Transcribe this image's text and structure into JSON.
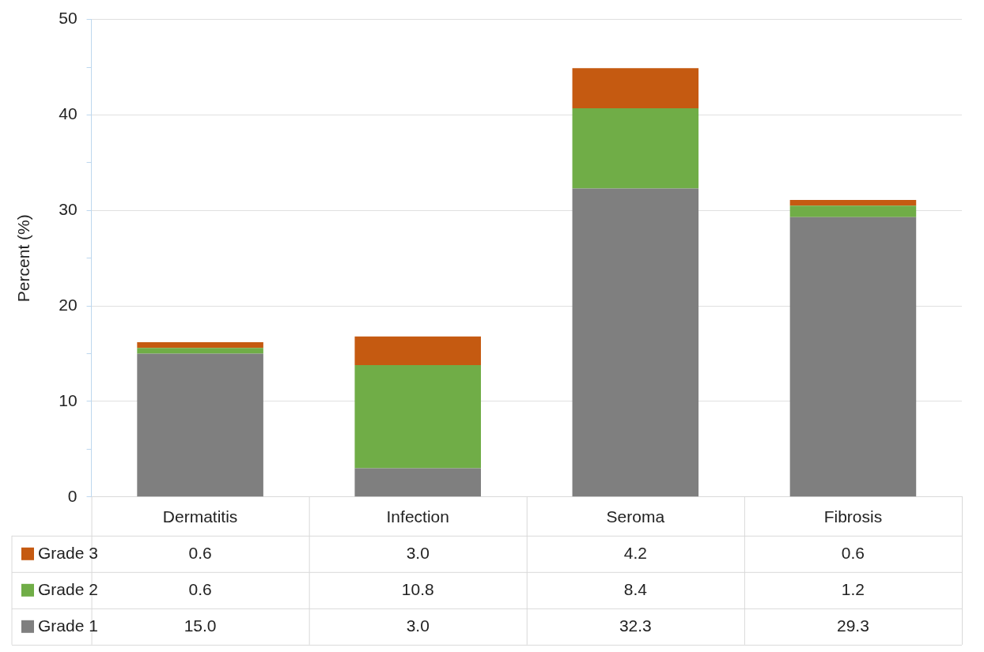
{
  "chart_data": {
    "type": "bar",
    "stacked": true,
    "ylabel": "Percent (%)",
    "categories": [
      "Dermatitis",
      "Infection",
      "Seroma",
      "Fibrosis"
    ],
    "series": [
      {
        "name": "Grade 1",
        "color": "#7f7f7f",
        "values": [
          15.0,
          3.0,
          32.3,
          29.3
        ],
        "value_labels": [
          "15.0",
          "3.0",
          "32.3",
          "29.3"
        ]
      },
      {
        "name": "Grade 2",
        "color": "#70ad47",
        "values": [
          0.6,
          10.8,
          8.4,
          1.2
        ],
        "value_labels": [
          "0.6",
          "10.8",
          "8.4",
          "1.2"
        ]
      },
      {
        "name": "Grade 3",
        "color": "#c55a11",
        "values": [
          0.6,
          3.0,
          4.2,
          0.6
        ],
        "value_labels": [
          "0.6",
          "3.0",
          "4.2",
          "0.6"
        ]
      }
    ],
    "ylim": [
      0,
      50
    ],
    "yticks": [
      0,
      {
        "value": 5,
        "label": null
      },
      10,
      {
        "value": 15,
        "label": null
      },
      20,
      {
        "value": 25,
        "label": null
      },
      30,
      {
        "value": 35,
        "label": null
      },
      40,
      {
        "value": 45,
        "label": null
      },
      50
    ],
    "grid": "y",
    "legend": "bottom"
  }
}
